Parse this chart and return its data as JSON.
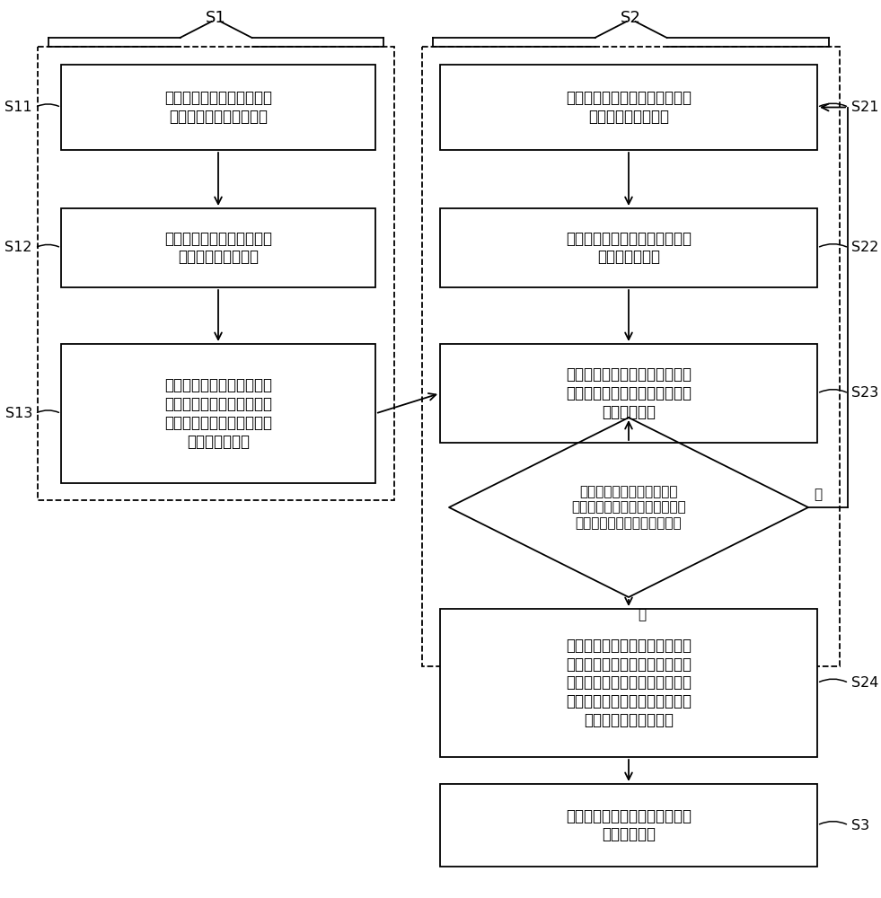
{
  "bg_color": "#ffffff",
  "border_color": "#000000",
  "s1_label": "S1",
  "s2_label": "S2",
  "s3_label": "S3",
  "s11_label": "S11",
  "s12_label": "S12",
  "s13_label": "S13",
  "s21_label": "S21",
  "s22_label": "S22",
  "s23_label": "S23",
  "s24_label": "S24",
  "box11_text": "获取第一人体运动时的彩色\n图像序列和深度图像序列",
  "box12_text": "获取第一人体关键点相对相\n机坐标系的三维坐标",
  "box13_text": "截取第一人体关键点的坐标\n序列并将其作为待对比的模\n板动作序列，模板动作序列\n构成模板动作库",
  "box21_text": "获取第二人体运动时的彩色图像\n序列和深度图像序列",
  "box22_text": "获取第二人体关键点相对相机坐\n标系的三维坐标",
  "box23_text": "从模板动作库选取待对比的模板\n动作序列，并获取该模板动作序\n列的时间长度",
  "diamond_text": "判断输入的第二人体关键点\n坐标序列的时间长度是否大于或\n等于模板动作序列的时间长度",
  "diamond_yes": "是",
  "diamond_no": "否",
  "box24_text": "截取与模板动作序列的时间长度\n相同且截止时间为当前输入的第\n二人体关键点坐标序列最新时间\n的第二人体关键点坐标序列，并\n将其作为输入动作序列",
  "box3_text": "对输入动作和模板动作的相似性\n进行实时评价"
}
